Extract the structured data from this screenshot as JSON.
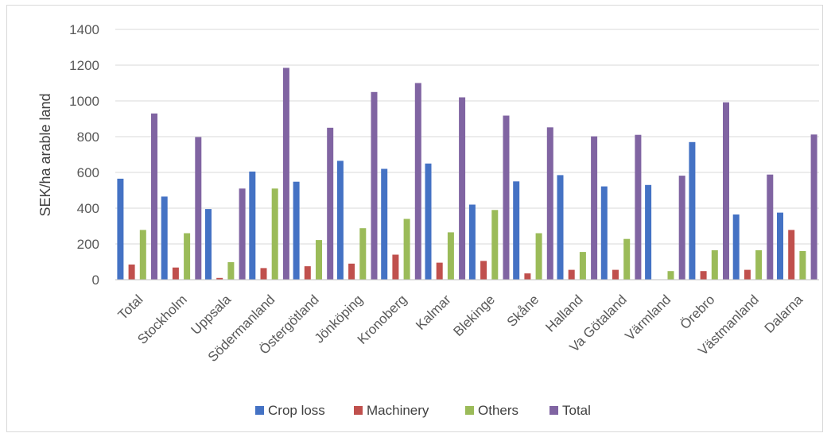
{
  "chart_data": {
    "type": "bar",
    "title": "",
    "xlabel": "",
    "ylabel": "SEK/ha arable land",
    "ylim": [
      0,
      1400
    ],
    "yticks": [
      0,
      200,
      400,
      600,
      800,
      1000,
      1200,
      1400
    ],
    "grid": true,
    "legend_position": "bottom",
    "categories": [
      "Total",
      "Stockholm",
      "Uppsala",
      "Södermanland",
      "Östergötland",
      "Jönköping",
      "Kronoberg",
      "Kalmar",
      "Blekinge",
      "Skåne",
      "Halland",
      "Va Götaland",
      "Värmland",
      "Örebro",
      "Västmanland",
      "Dalarna"
    ],
    "series": [
      {
        "name": "Crop loss",
        "color": "#4472C4",
        "values": [
          565,
          465,
          395,
          605,
          548,
          665,
          620,
          650,
          420,
          550,
          585,
          522,
          530,
          770,
          365,
          375
        ]
      },
      {
        "name": "Machinery",
        "color": "#C0504D",
        "values": [
          85,
          68,
          10,
          65,
          75,
          90,
          140,
          95,
          105,
          35,
          55,
          55,
          0,
          48,
          55,
          278
        ]
      },
      {
        "name": "Others",
        "color": "#9BBB59",
        "values": [
          278,
          260,
          98,
          510,
          222,
          288,
          340,
          265,
          390,
          260,
          155,
          228,
          48,
          165,
          165,
          160
        ]
      },
      {
        "name": "Total",
        "color": "#8064A2",
        "values": [
          930,
          798,
          510,
          1185,
          850,
          1050,
          1100,
          1020,
          918,
          852,
          802,
          810,
          582,
          992,
          588,
          812
        ]
      }
    ]
  }
}
